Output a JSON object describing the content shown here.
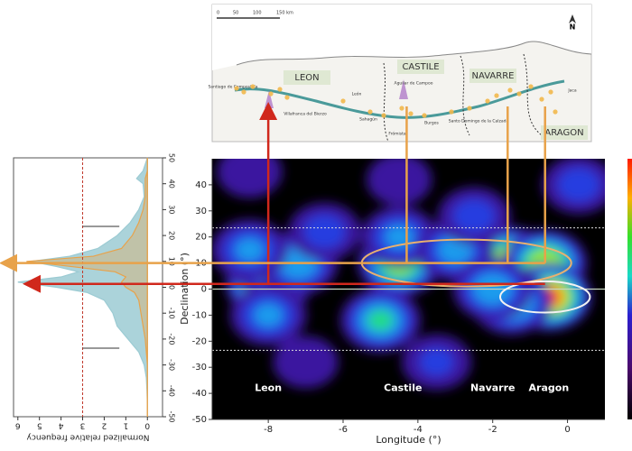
{
  "chart_data": [
    {
      "type": "heatmap",
      "xlabel": "Longitude (°)",
      "ylabel": "Declination (°)",
      "xlim": [
        -9.5,
        1
      ],
      "ylim": [
        -50,
        50
      ],
      "xticks": [
        -8,
        -6,
        -4,
        -2,
        0
      ],
      "yticks": [
        -50,
        -40,
        -30,
        -20,
        -10,
        0,
        10,
        20,
        30,
        40
      ],
      "hlines": [
        23.5,
        -23.5
      ],
      "equator": 0,
      "region_labels": [
        "Leon",
        "Castile",
        "Navarre",
        "Aragon"
      ],
      "region_label_x": [
        -8,
        -4.4,
        -2,
        -0.5
      ],
      "region_label_y": -38,
      "hotspots": {
        "x": [
          -8,
          -8,
          -7.2,
          -8.5,
          -8,
          -4.5,
          -4.5,
          -5,
          -1.5,
          -0.6,
          -0.5,
          -1.5,
          -3,
          -2,
          0.3,
          -8.5,
          -4.5,
          -2.5,
          -6.5,
          -3.5,
          -7
        ],
        "y": [
          2,
          10,
          10,
          15,
          -10,
          10,
          20,
          -12,
          11,
          10,
          -3,
          -5,
          15,
          0,
          40,
          45,
          42,
          28,
          22,
          -28,
          -28
        ],
        "level": [
          1.0,
          0.6,
          0.5,
          0.4,
          0.4,
          0.75,
          0.4,
          0.55,
          0.85,
          0.8,
          1.0,
          0.6,
          0.45,
          0.5,
          0.3,
          0.2,
          0.2,
          0.3,
          0.3,
          0.25,
          0.2
        ]
      },
      "ellipses": [
        {
          "cx": -2.7,
          "cy": 10,
          "rx": 2.8,
          "ry": 9
        },
        {
          "cx": -0.6,
          "cy": -3,
          "rx": 1.2,
          "ry": 6
        }
      ],
      "arrows": {
        "orange_x": [
          -4.3,
          -1.6,
          -0.6
        ],
        "orange_dec": 10,
        "red_x": [
          -8
        ],
        "red_dec": 2
      }
    },
    {
      "type": "histogram",
      "xlabel": "Normalized relative frequency",
      "xlim": [
        6.2,
        -0.7
      ],
      "ylim": [
        -50,
        50
      ],
      "xticks": [
        6,
        5,
        4,
        3,
        2,
        1,
        0
      ],
      "yticks": [
        -50,
        -40,
        -30,
        -20,
        -10,
        0,
        10,
        20,
        30,
        40,
        50
      ],
      "y": [
        50,
        45,
        42,
        40,
        35,
        30,
        25,
        20,
        15,
        12,
        10,
        8,
        6,
        4,
        2,
        0,
        -2,
        -5,
        -10,
        -15,
        -20,
        -25,
        -30,
        -35,
        -40,
        -45,
        -50
      ],
      "series": [
        {
          "color": "#9ccbd3",
          "values": [
            0,
            0.2,
            0.5,
            0.2,
            0.15,
            0.4,
            0.8,
            1.4,
            2.3,
            3.6,
            5.4,
            4.2,
            3.2,
            4.0,
            6.0,
            4.2,
            2.8,
            2.0,
            1.6,
            1.4,
            0.9,
            0.4,
            0.15,
            0.05,
            0.02,
            0,
            0
          ]
        },
        {
          "color": "#e8a24a",
          "values": [
            0,
            0,
            0.1,
            0.1,
            0.1,
            0.2,
            0.4,
            0.7,
            1.2,
            2.5,
            5.6,
            3.5,
            1.5,
            1.0,
            1.2,
            1.0,
            0.6,
            0.4,
            0.3,
            0.2,
            0.1,
            0.05,
            0,
            0,
            0,
            0,
            0
          ]
        }
      ],
      "vlines": [
        {
          "value": 3,
          "color": "#c0392b"
        },
        {
          "value": 0,
          "color": "#e8a24a"
        }
      ],
      "tropics": [
        23.5,
        -23.5
      ],
      "tropic_span": [
        3,
        1.3
      ]
    }
  ],
  "map": {
    "regions": [
      "LEON",
      "CASTILE",
      "NAVARRE",
      "ARAGON"
    ],
    "places": [
      "Santiago de Compostela",
      "Villafranca del Bierzo",
      "León",
      "Sahagún",
      "Frómista",
      "Aguilar de Campoo",
      "Burgos",
      "Santo Domingo de la Calzada",
      "Jaca"
    ],
    "scale": [
      "0",
      "50",
      "100",
      "150 km"
    ],
    "north": "N"
  }
}
